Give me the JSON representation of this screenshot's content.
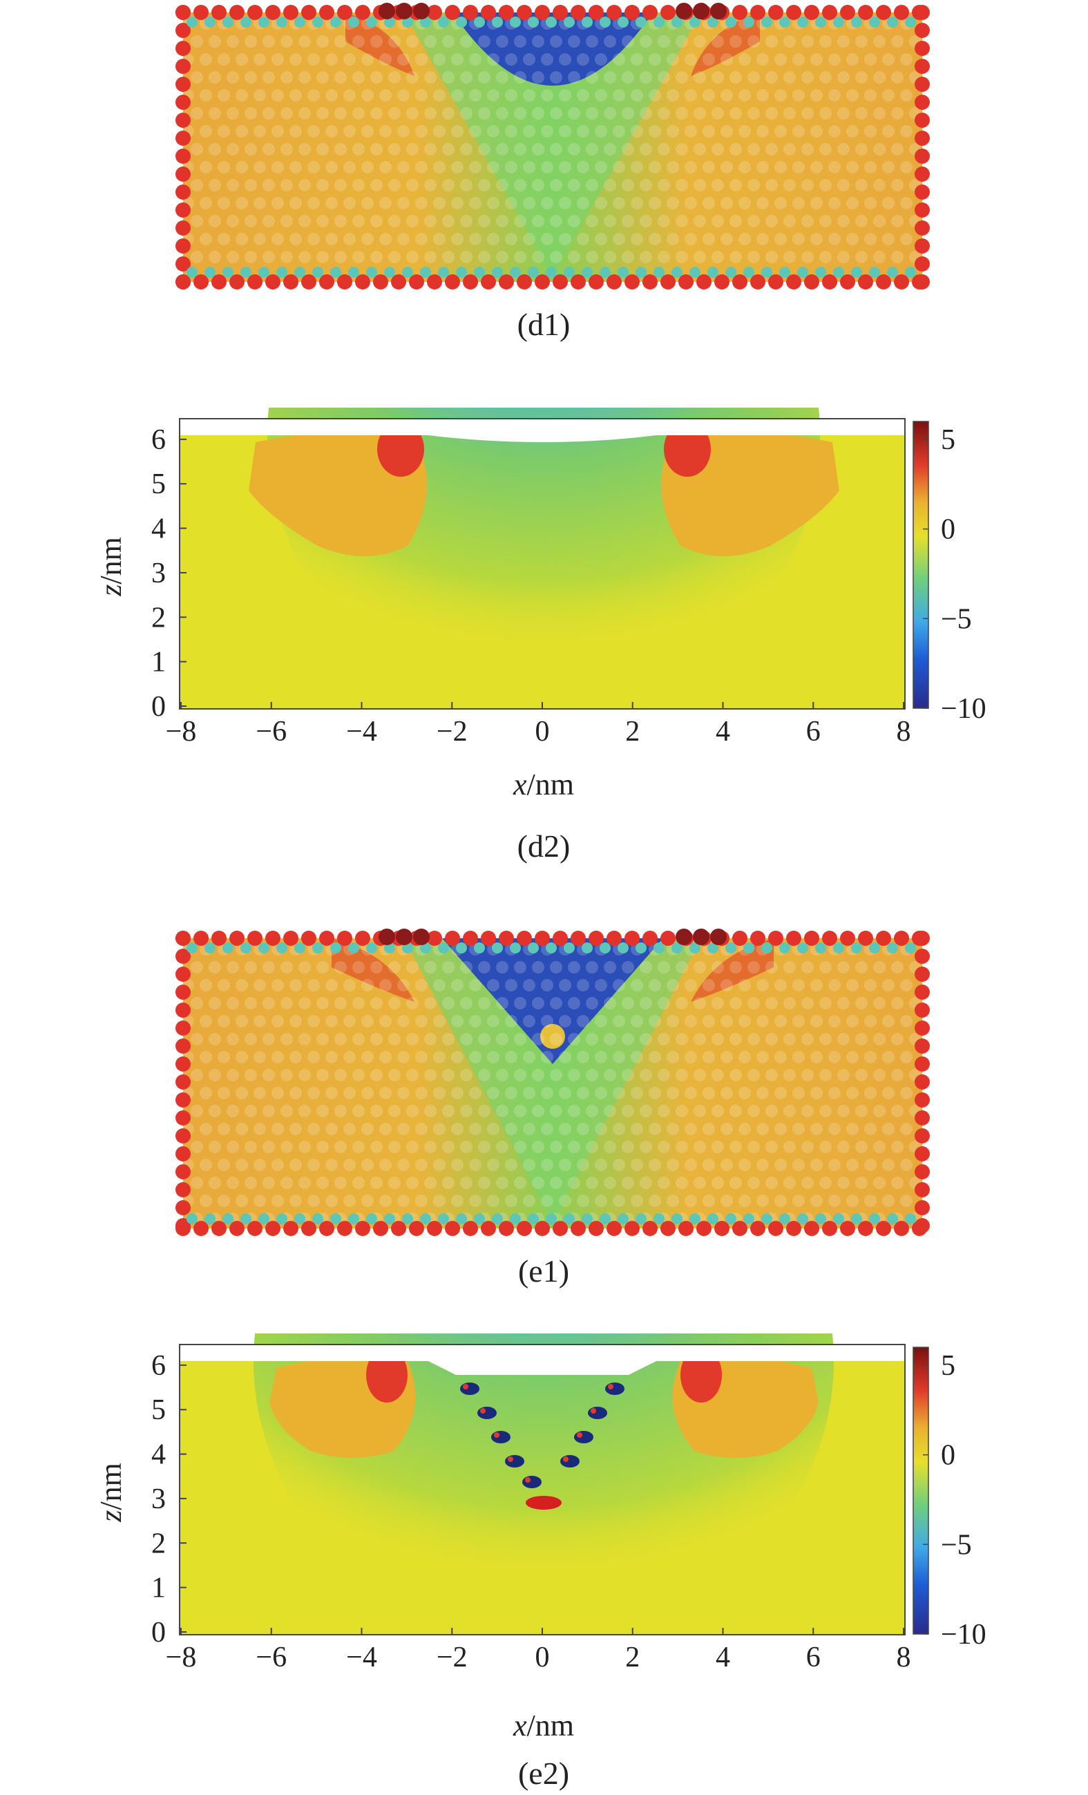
{
  "panels": [
    {
      "id": "d1",
      "kind": "atoms",
      "caption": "(d1)",
      "pit": {
        "half_width_nm": 2.6,
        "depth_nm": 2.4,
        "has_vertex_void": false
      }
    },
    {
      "id": "d2",
      "kind": "contour",
      "caption": "(d2)",
      "xlabel_var": "x",
      "xlabel_unit": "/nm",
      "ylabel_var": "z",
      "ylabel_unit": "/nm",
      "xticks": [
        "−8",
        "−6",
        "−4",
        "−2",
        "0",
        "2",
        "4",
        "6",
        "8"
      ],
      "yticks": [
        "0",
        "1",
        "2",
        "3",
        "4",
        "5",
        "6"
      ],
      "colorbar_ticks": [
        "5",
        "0",
        "−5",
        "−10"
      ]
    },
    {
      "id": "e1",
      "kind": "atoms",
      "caption": "(e1)",
      "pit": {
        "half_width_nm": 3.0,
        "depth_nm": 2.6,
        "has_vertex_void": true
      }
    },
    {
      "id": "e2",
      "kind": "contour",
      "caption": "(e2)",
      "xlabel_var": "x",
      "xlabel_unit": "/nm",
      "ylabel_var": "z",
      "ylabel_unit": "/nm",
      "xticks": [
        "−8",
        "−6",
        "−4",
        "−2",
        "0",
        "2",
        "4",
        "6",
        "8"
      ],
      "yticks": [
        "0",
        "1",
        "2",
        "3",
        "4",
        "5",
        "6"
      ],
      "colorbar_ticks": [
        "5",
        "0",
        "−5",
        "−10"
      ]
    }
  ],
  "colormap": {
    "min": -10,
    "max": 6,
    "stops": [
      "#2a2a8c",
      "#1e5bd6",
      "#3fa9e8",
      "#5cc8c0",
      "#8fd05a",
      "#e6e02a",
      "#eab030",
      "#e8803a",
      "#d62020",
      "#7a1010"
    ]
  },
  "colors": {
    "atom_edge_red": "#e2332b",
    "atom_edge_cyan": "#5cc7b8",
    "atom_dark": "#8b1a1a",
    "surface_line": "#aaaaaa"
  }
}
